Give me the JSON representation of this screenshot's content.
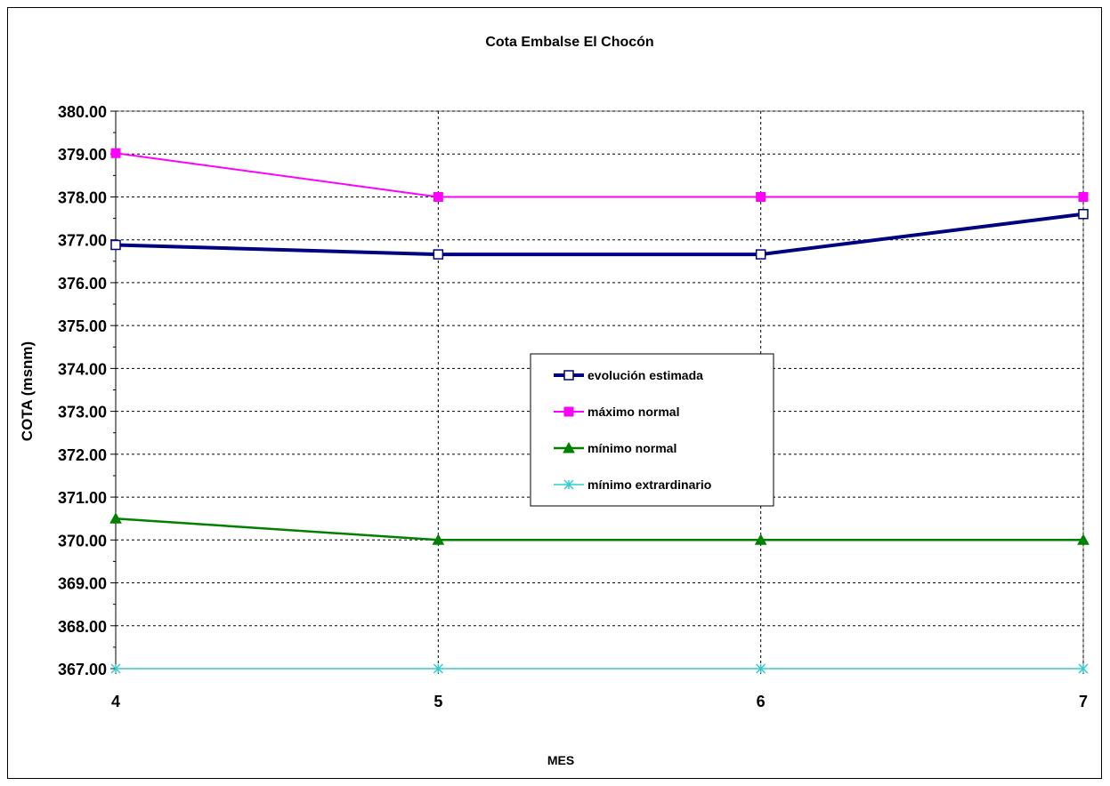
{
  "chart_data": {
    "type": "line",
    "title": "Cota Embalse El Chocón",
    "xlabel": "MES",
    "ylabel": "COTA (msnm)",
    "x": [
      4,
      5,
      6,
      7
    ],
    "x_tick_labels": [
      "4",
      "5",
      "6",
      "7"
    ],
    "ylim": [
      367,
      380
    ],
    "y_ticks": [
      367,
      368,
      369,
      370,
      371,
      372,
      373,
      374,
      375,
      376,
      377,
      378,
      379,
      380
    ],
    "y_tick_labels": [
      "367.00",
      "368.00",
      "369.00",
      "370.00",
      "371.00",
      "372.00",
      "373.00",
      "374.00",
      "375.00",
      "376.00",
      "377.00",
      "378.00",
      "379.00",
      "380.00"
    ],
    "grid": true,
    "legend_position": "center-right",
    "series": [
      {
        "name": "evolución estimada",
        "values": [
          376.88,
          376.66,
          376.66,
          377.6
        ],
        "color": "#000080",
        "marker": "square-open"
      },
      {
        "name": "máximo normal",
        "values": [
          379.02,
          378.0,
          378.0,
          378.0
        ],
        "color": "#ff00ff",
        "marker": "square"
      },
      {
        "name": "mínimo normal",
        "values": [
          370.5,
          370.0,
          370.0,
          370.0
        ],
        "color": "#008000",
        "marker": "triangle"
      },
      {
        "name": "mínimo extrardinario",
        "values": [
          367.0,
          367.0,
          367.0,
          367.0
        ],
        "color": "#33cccc",
        "marker": "star"
      }
    ]
  }
}
